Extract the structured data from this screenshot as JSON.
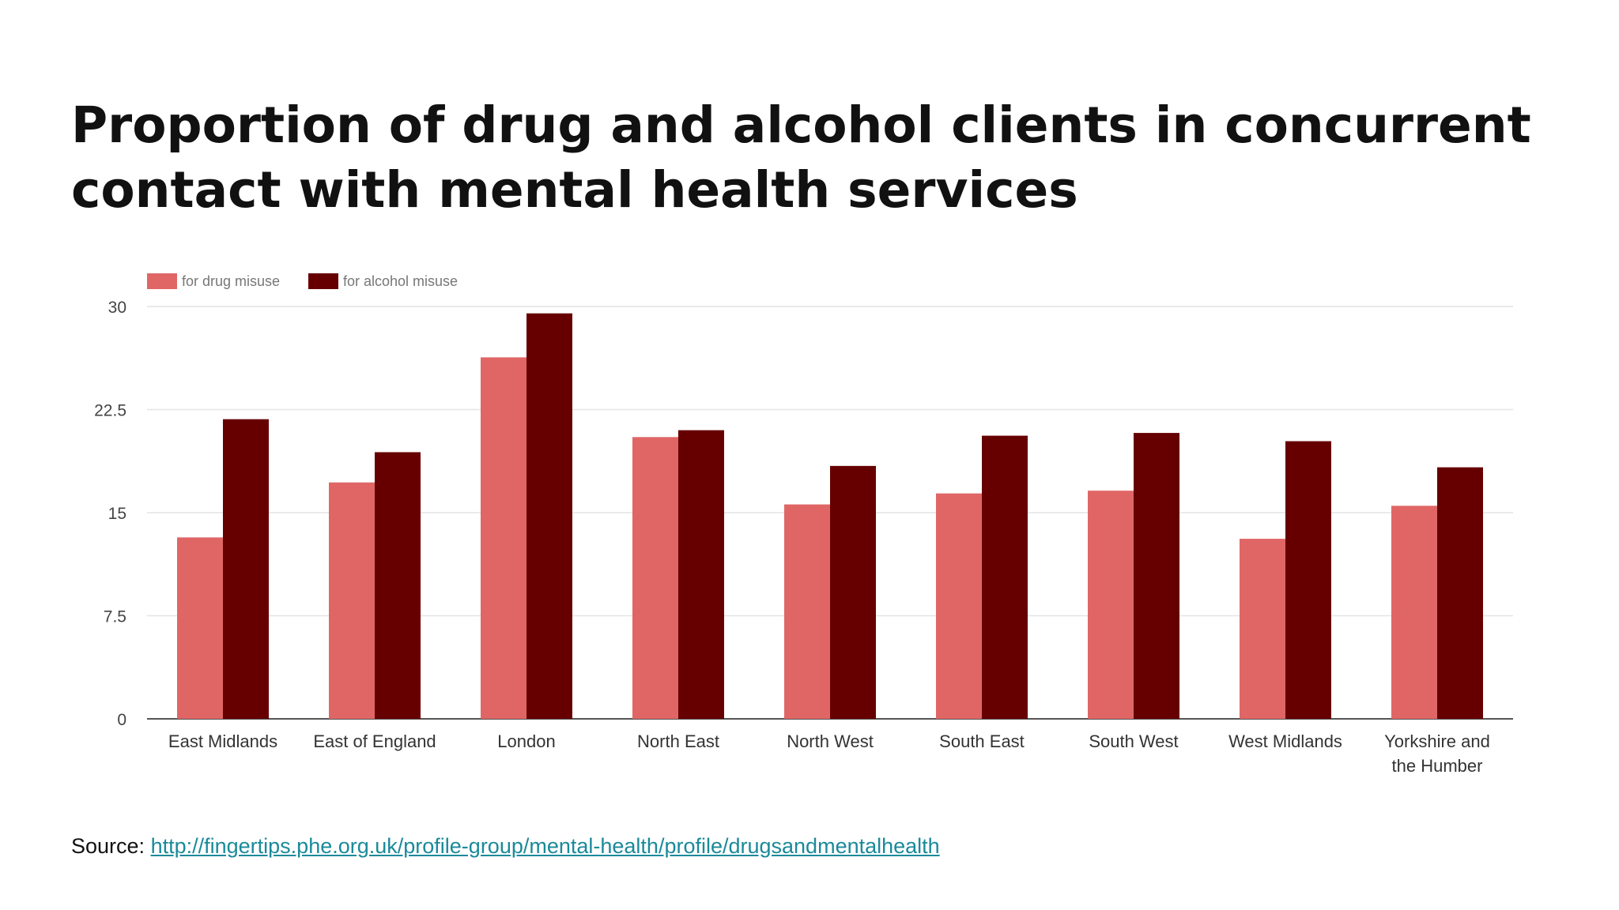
{
  "title_lines": [
    "Proportion of drug and alcohol clients in concurrent",
    "contact with mental health services"
  ],
  "source": {
    "label": "Source:",
    "link": "http://fingertips.phe.org.uk/profile-group/mental-health/profile/drugsandmentalhealth"
  },
  "chart_data": {
    "type": "bar",
    "categories": [
      [
        "East Midlands"
      ],
      [
        "East of England"
      ],
      [
        "London"
      ],
      [
        "North East"
      ],
      [
        "North West"
      ],
      [
        "South East"
      ],
      [
        "South West"
      ],
      [
        "West Midlands"
      ],
      [
        "Yorkshire and",
        "the Humber"
      ]
    ],
    "series": [
      {
        "name": "for drug misuse",
        "color": "#e06666",
        "values": [
          13.2,
          17.2,
          26.3,
          20.5,
          15.6,
          16.4,
          16.6,
          13.1,
          15.5
        ]
      },
      {
        "name": "for alcohol misuse",
        "color": "#660000",
        "values": [
          21.8,
          19.4,
          29.5,
          21.0,
          18.4,
          20.6,
          20.8,
          20.2,
          18.3
        ]
      }
    ],
    "y_ticks": [
      "0",
      "7.5",
      "15",
      "22.5",
      "30"
    ],
    "ylim": [
      0,
      30
    ],
    "grid": true,
    "legend_position": "top-left"
  }
}
